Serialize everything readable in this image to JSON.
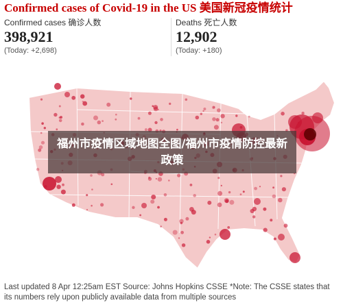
{
  "header": {
    "title": "Confirmed cases of Covid-19 in the US 美国新冠疫情统计"
  },
  "stats": {
    "cases": {
      "label": "Confirmed cases 确诊人数",
      "value": "398,921",
      "today": "(Today: +2,698)"
    },
    "deaths": {
      "label": "Deaths 死亡人数",
      "value": "12,902",
      "today": "(Today: +180)"
    }
  },
  "banner": {
    "text": "福州市疫情区域地图全图/福州市疫情防控最新政策"
  },
  "footer": {
    "text": "Last updated 8 Apr 12:25am EST Source: Johns Hopkins CSSE *Note: The CSSE states that its numbers rely upon publicly available data from multiple sources"
  },
  "map": {
    "fill_color": "#f4c9c9",
    "border_color": "#ffffff",
    "bubble_color": "#c8102e",
    "hotspot_color": "#5a0000"
  }
}
